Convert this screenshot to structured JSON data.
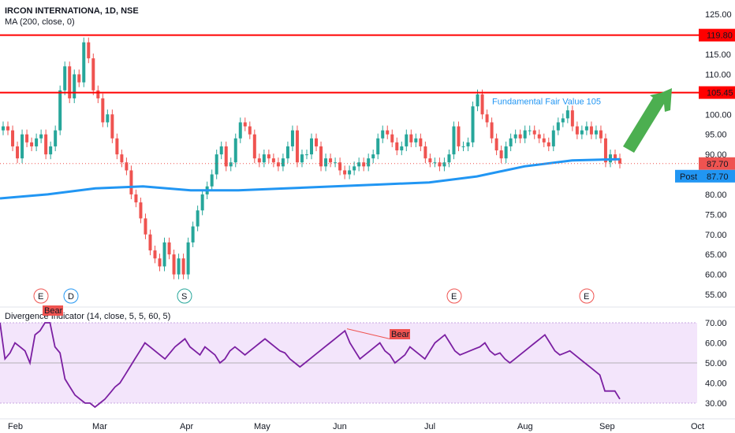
{
  "header": {
    "title": "IRCON INTERNATIONA, 1D, NSE",
    "ma_label": "MA (200, close, 0)",
    "osc_label": "Divergence Indicator (14, close, 5, 5, 60, 5)"
  },
  "colors": {
    "up": "#26a69a",
    "down": "#ef5350",
    "ma": "#2196f3",
    "hline": "#ff0000",
    "rsi_line": "#7b1fa2",
    "rsi_band": "#f3e5fb",
    "arrow": "#4caf50",
    "post": "#2196f3"
  },
  "chart_data": [
    {
      "type": "candlestick",
      "title": "IRCON INTERNATIONA, 1D, NSE",
      "ylim": [
        50,
        127
      ],
      "y_ticks": [
        "55.00",
        "60.00",
        "65.00",
        "70.00",
        "75.00",
        "80.00",
        "85.00",
        "90.00",
        "95.00",
        "100.00",
        "105.00",
        "110.00",
        "115.00",
        "120.00",
        "125.00"
      ],
      "x_ticks": [
        "Feb",
        "Mar",
        "Apr",
        "May",
        "Jun",
        "Jul",
        "Aug",
        "Sep",
        "Oct"
      ],
      "closes": [
        97,
        96,
        92,
        89,
        95,
        93,
        92,
        94,
        95,
        90,
        92,
        96,
        106,
        112,
        104,
        110,
        108,
        118,
        114,
        106,
        104,
        98,
        100,
        94,
        90,
        88,
        86,
        80,
        78,
        74,
        70,
        66,
        64,
        62,
        68,
        65,
        60,
        64,
        60,
        68,
        72,
        76,
        80,
        82,
        85,
        90,
        92,
        87,
        88,
        94,
        98,
        97,
        95,
        89,
        88,
        90,
        89,
        88,
        87,
        89,
        92,
        96,
        88,
        90,
        90,
        94,
        92,
        87,
        89,
        88,
        88,
        86,
        85,
        86,
        87,
        88,
        87,
        89,
        90,
        94,
        96,
        95,
        93,
        91,
        92,
        95,
        93,
        94,
        92,
        89,
        88,
        88,
        87,
        88,
        90,
        97,
        92,
        92,
        93,
        102,
        105,
        100,
        98,
        94,
        91,
        89,
        92,
        94,
        95,
        94,
        96,
        96,
        95,
        94,
        93,
        92,
        96,
        98,
        99,
        101,
        97,
        95,
        96,
        97,
        95,
        96,
        94,
        88,
        90,
        89,
        87.7
      ],
      "ma200_visible_levels": [
        79,
        80,
        81.5,
        82,
        81,
        81,
        81.5,
        82,
        82.5,
        83,
        84.5,
        87,
        88.5,
        88.8
      ],
      "horizontal_levels": [
        {
          "value": 119.8,
          "label": "119.80"
        },
        {
          "value": 105.45,
          "label": "105.45"
        }
      ],
      "last_price": {
        "value": 87.7,
        "label": "87.70"
      },
      "post_price": {
        "label": "Post",
        "value": "87.70"
      },
      "annotation": "Fundamental Fair Value 105",
      "event_markers": [
        "E",
        "D",
        "S",
        "E",
        "E"
      ]
    },
    {
      "type": "line",
      "title": "Divergence Indicator (14, close, 5, 5, 60, 5)",
      "ylim": [
        25,
        75
      ],
      "y_ticks": [
        "30.00",
        "40.00",
        "50.00",
        "60.00",
        "70.00"
      ],
      "band": [
        30,
        70
      ],
      "midline": 50,
      "values": [
        70,
        52,
        55,
        60,
        58,
        56,
        50,
        64,
        66,
        70,
        70,
        58,
        55,
        42,
        38,
        34,
        32,
        30,
        30,
        28,
        30,
        32,
        35,
        38,
        40,
        44,
        48,
        52,
        56,
        60,
        58,
        56,
        54,
        52,
        55,
        58,
        60,
        62,
        58,
        56,
        54,
        58,
        56,
        54,
        50,
        52,
        56,
        58,
        56,
        54,
        56,
        58,
        60,
        62,
        60,
        58,
        56,
        55,
        52,
        50,
        48,
        50,
        52,
        54,
        56,
        58,
        60,
        62,
        64,
        66,
        60,
        56,
        52,
        54,
        56,
        58,
        60,
        56,
        54,
        50,
        52,
        54,
        58,
        56,
        54,
        52,
        56,
        60,
        62,
        64,
        60,
        56,
        54,
        55,
        56,
        57,
        58,
        60,
        56,
        54,
        55,
        52,
        50,
        52,
        54,
        56,
        58,
        60,
        62,
        64,
        60,
        56,
        54,
        55,
        56,
        54,
        52,
        50,
        48,
        46,
        44,
        36,
        36,
        36,
        32
      ],
      "bear_labels": [
        "Bear",
        "Bear"
      ]
    }
  ]
}
